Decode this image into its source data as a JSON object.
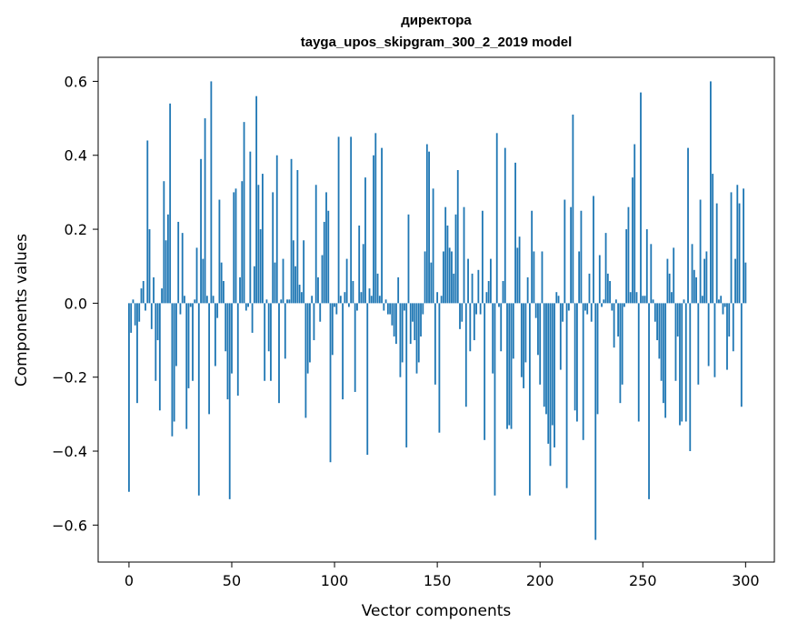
{
  "chart_data": {
    "type": "bar",
    "title": "директора",
    "subtitle": "tayga_upos_skipgram_300_2_2019 model",
    "xlabel": "Vector components",
    "ylabel": "Components values",
    "xlim": [
      -15,
      314
    ],
    "ylim": [
      -0.7,
      0.665
    ],
    "xticks": [
      0,
      50,
      100,
      150,
      200,
      250,
      300
    ],
    "xtick_labels": [
      "0",
      "50",
      "100",
      "150",
      "200",
      "250",
      "300"
    ],
    "yticks": [
      -0.6,
      -0.4,
      -0.2,
      0.0,
      0.2,
      0.4,
      0.6
    ],
    "ytick_labels": [
      "−0.6",
      "−0.4",
      "−0.2",
      "0.0",
      "0.2",
      "0.4",
      "0.6"
    ],
    "bar_color": "#1f77b4",
    "grid": false,
    "legend": "none",
    "values": [
      -0.51,
      -0.08,
      0.01,
      -0.06,
      -0.27,
      -0.05,
      0.04,
      0.06,
      -0.02,
      0.44,
      0.2,
      -0.07,
      0.07,
      -0.21,
      -0.1,
      -0.29,
      0.04,
      0.33,
      0.17,
      0.24,
      0.54,
      -0.36,
      -0.32,
      -0.17,
      0.22,
      -0.03,
      0.19,
      0.02,
      -0.34,
      -0.23,
      -0.01,
      -0.21,
      0.01,
      0.15,
      -0.52,
      0.39,
      0.12,
      0.5,
      0.02,
      -0.3,
      0.6,
      0.02,
      -0.17,
      -0.04,
      0.28,
      0.11,
      0.06,
      -0.13,
      -0.26,
      -0.53,
      -0.19,
      0.3,
      0.31,
      -0.25,
      0.07,
      0.33,
      0.49,
      -0.02,
      -0.01,
      0.41,
      -0.08,
      0.1,
      0.56,
      0.32,
      0.2,
      0.35,
      -0.21,
      0.01,
      -0.13,
      -0.21,
      0.3,
      0.11,
      0.4,
      -0.27,
      0.01,
      0.12,
      -0.15,
      0.01,
      0.01,
      0.39,
      0.17,
      0.1,
      0.36,
      0.05,
      0.03,
      0.17,
      -0.31,
      -0.19,
      -0.16,
      0.02,
      -0.1,
      0.32,
      0.07,
      -0.05,
      0.13,
      0.22,
      0.3,
      0.25,
      -0.43,
      -0.14,
      -0.01,
      -0.03,
      0.45,
      0.02,
      -0.26,
      0.03,
      0.12,
      -0.01,
      0.45,
      0.06,
      -0.24,
      -0.02,
      0.21,
      0.03,
      0.16,
      0.34,
      -0.41,
      0.04,
      0.02,
      0.4,
      0.46,
      0.08,
      0.02,
      0.42,
      -0.02,
      0.01,
      -0.03,
      -0.03,
      -0.06,
      -0.09,
      -0.11,
      0.07,
      -0.2,
      -0.16,
      -0.02,
      -0.39,
      0.24,
      -0.11,
      -0.05,
      -0.1,
      -0.19,
      -0.16,
      -0.09,
      -0.03,
      0.14,
      0.43,
      0.41,
      0.11,
      0.31,
      -0.22,
      0.03,
      -0.35,
      0.02,
      0.14,
      0.26,
      0.21,
      0.15,
      0.14,
      0.08,
      0.24,
      0.36,
      -0.07,
      -0.05,
      0.26,
      -0.28,
      0.12,
      -0.13,
      0.08,
      -0.1,
      -0.03,
      0.09,
      -0.03,
      0.25,
      -0.37,
      0.03,
      0.06,
      0.12,
      -0.19,
      -0.52,
      0.46,
      -0.01,
      -0.13,
      0.06,
      0.42,
      -0.34,
      -0.33,
      -0.34,
      -0.15,
      0.38,
      0.15,
      0.18,
      -0.2,
      -0.23,
      -0.16,
      0.07,
      -0.52,
      0.25,
      0.14,
      -0.04,
      -0.14,
      -0.22,
      0.14,
      -0.28,
      -0.3,
      -0.38,
      -0.44,
      -0.33,
      -0.39,
      0.03,
      0.02,
      -0.18,
      -0.05,
      0.28,
      -0.5,
      -0.02,
      0.26,
      0.51,
      -0.29,
      -0.32,
      0.14,
      0.25,
      -0.37,
      -0.02,
      -0.03,
      0.08,
      -0.05,
      0.29,
      -0.64,
      -0.3,
      0.13,
      -0.01,
      0.01,
      0.19,
      0.08,
      0.06,
      -0.02,
      -0.12,
      0.01,
      -0.09,
      -0.27,
      -0.22,
      -0.01,
      0.2,
      0.26,
      0.03,
      0.34,
      0.43,
      0.03,
      -0.32,
      0.57,
      0.02,
      0.02,
      0.2,
      -0.53,
      0.16,
      0.01,
      -0.05,
      -0.1,
      -0.15,
      -0.21,
      -0.27,
      -0.31,
      0.12,
      0.08,
      0.03,
      0.15,
      -0.21,
      -0.09,
      -0.33,
      -0.32,
      0.01,
      -0.32,
      0.42,
      -0.4,
      0.16,
      0.09,
      0.07,
      -0.22,
      0.28,
      0.02,
      0.12,
      0.14,
      -0.17,
      0.6,
      0.35,
      -0.2,
      0.27,
      0.01,
      0.02,
      -0.03,
      -0.01,
      -0.18,
      -0.09,
      0.3,
      -0.13,
      0.12,
      0.32,
      0.27,
      -0.28,
      0.31,
      0.11
    ]
  }
}
